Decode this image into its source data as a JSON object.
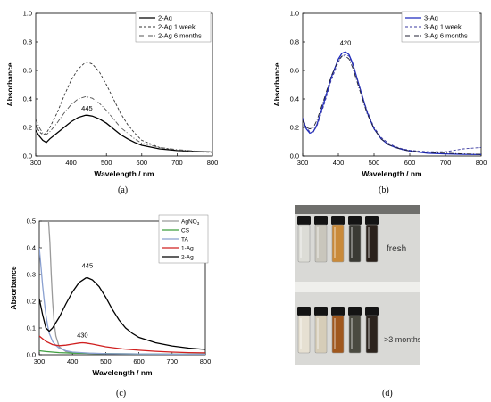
{
  "chart_data": [
    {
      "panel": "(a)",
      "type": "line",
      "xlabel": "Wavelength / nm",
      "ylabel": "Absorbance",
      "xlim": [
        300,
        800
      ],
      "ylim": [
        0,
        1.0
      ],
      "xticks": [
        "300",
        "400",
        "500",
        "600",
        "700",
        "800"
      ],
      "yticks": [
        "0.0",
        "0.2",
        "0.4",
        "0.6",
        "0.8",
        "1.0"
      ],
      "grid": false,
      "legend": "top-right",
      "annotations": [
        {
          "text": "445",
          "x": 445,
          "y": 0.3
        }
      ],
      "series": [
        {
          "name": "2-Ag",
          "style": "solid",
          "color": "#000000",
          "x": [
            300,
            310,
            320,
            330,
            340,
            360,
            380,
            400,
            420,
            440,
            445,
            460,
            480,
            500,
            520,
            540,
            560,
            580,
            600,
            650,
            700,
            750,
            800
          ],
          "y": [
            0.18,
            0.14,
            0.11,
            0.095,
            0.12,
            0.16,
            0.2,
            0.24,
            0.27,
            0.285,
            0.286,
            0.28,
            0.26,
            0.23,
            0.19,
            0.15,
            0.12,
            0.095,
            0.075,
            0.05,
            0.038,
            0.032,
            0.028
          ]
        },
        {
          "name": "2-Ag 1 week",
          "style": "dashed",
          "color": "#333333",
          "x": [
            300,
            310,
            320,
            330,
            340,
            360,
            380,
            400,
            420,
            440,
            445,
            460,
            480,
            500,
            520,
            540,
            560,
            580,
            600,
            650,
            700,
            750,
            800
          ],
          "y": [
            0.22,
            0.17,
            0.15,
            0.16,
            0.2,
            0.3,
            0.42,
            0.53,
            0.61,
            0.655,
            0.66,
            0.645,
            0.59,
            0.5,
            0.4,
            0.3,
            0.22,
            0.16,
            0.11,
            0.06,
            0.04,
            0.03,
            0.025
          ]
        },
        {
          "name": "2-Ag 6 months",
          "style": "dashdot",
          "color": "#555555",
          "x": [
            300,
            310,
            320,
            330,
            340,
            360,
            380,
            400,
            420,
            440,
            445,
            460,
            480,
            500,
            520,
            540,
            560,
            580,
            600,
            650,
            700,
            750,
            800
          ],
          "y": [
            0.26,
            0.2,
            0.16,
            0.15,
            0.17,
            0.23,
            0.3,
            0.36,
            0.4,
            0.415,
            0.415,
            0.405,
            0.37,
            0.32,
            0.26,
            0.2,
            0.16,
            0.12,
            0.09,
            0.06,
            0.045,
            0.035,
            0.03
          ]
        }
      ]
    },
    {
      "panel": "(b)",
      "type": "line",
      "xlabel": "Wavelength / nm",
      "ylabel": "Absorbance",
      "xlim": [
        300,
        800
      ],
      "ylim": [
        0,
        1.0
      ],
      "xticks": [
        "300",
        "400",
        "500",
        "600",
        "700",
        "800"
      ],
      "yticks": [
        "0.0",
        "0.2",
        "0.4",
        "0.6",
        "0.8",
        "1.0"
      ],
      "grid": false,
      "legend": "top-right",
      "annotations": [
        {
          "text": "420",
          "x": 420,
          "y": 0.76
        }
      ],
      "series": [
        {
          "name": "3-Ag",
          "style": "solid",
          "color": "#1f2bbf",
          "x": [
            300,
            310,
            320,
            330,
            340,
            360,
            380,
            400,
            410,
            420,
            430,
            440,
            460,
            480,
            500,
            520,
            540,
            560,
            580,
            600,
            650,
            700,
            750,
            800
          ],
          "y": [
            0.26,
            0.19,
            0.16,
            0.17,
            0.22,
            0.38,
            0.55,
            0.68,
            0.72,
            0.73,
            0.71,
            0.65,
            0.48,
            0.31,
            0.19,
            0.12,
            0.08,
            0.06,
            0.045,
            0.035,
            0.02,
            0.015,
            0.012,
            0.01
          ]
        },
        {
          "name": "3-Ag 1 week",
          "style": "dashed",
          "color": "#3a3aa0",
          "x": [
            300,
            310,
            320,
            330,
            340,
            360,
            380,
            400,
            410,
            420,
            430,
            440,
            460,
            480,
            500,
            520,
            540,
            560,
            580,
            600,
            650,
            700,
            750,
            800
          ],
          "y": [
            0.27,
            0.2,
            0.17,
            0.17,
            0.21,
            0.36,
            0.53,
            0.66,
            0.7,
            0.71,
            0.7,
            0.64,
            0.48,
            0.32,
            0.2,
            0.13,
            0.09,
            0.065,
            0.05,
            0.04,
            0.03,
            0.03,
            0.05,
            0.06
          ]
        },
        {
          "name": "3-Ag 6 months",
          "style": "dashdot",
          "color": "#222233",
          "x": [
            300,
            310,
            320,
            330,
            340,
            360,
            380,
            400,
            410,
            420,
            430,
            440,
            460,
            480,
            500,
            520,
            540,
            560,
            580,
            600,
            650,
            700,
            750,
            800
          ],
          "y": [
            0.25,
            0.2,
            0.19,
            0.2,
            0.25,
            0.4,
            0.56,
            0.67,
            0.7,
            0.7,
            0.68,
            0.62,
            0.46,
            0.3,
            0.19,
            0.12,
            0.08,
            0.06,
            0.045,
            0.035,
            0.025,
            0.02,
            0.015,
            0.012
          ]
        }
      ]
    },
    {
      "panel": "(c)",
      "type": "line",
      "xlabel": "Wavelength / nm",
      "ylabel": "Absorbance",
      "xlim": [
        300,
        800
      ],
      "ylim": [
        0,
        0.5
      ],
      "xticks": [
        "300",
        "400",
        "500",
        "600",
        "700",
        "800"
      ],
      "yticks": [
        "0.0",
        "0.1",
        "0.2",
        "0.3",
        "0.4",
        "0.5"
      ],
      "grid": false,
      "legend": "top-right",
      "annotations": [
        {
          "text": "445",
          "x": 445,
          "y": 0.315
        },
        {
          "text": "430",
          "x": 430,
          "y": 0.055
        }
      ],
      "series": [
        {
          "name": "AgNO3",
          "style": "solid",
          "color": "#9a9a9a",
          "x": [
            328,
            332,
            336,
            340,
            345,
            350,
            360,
            380,
            400,
            450,
            500,
            600,
            700,
            800
          ],
          "y": [
            0.5,
            0.42,
            0.3,
            0.2,
            0.12,
            0.07,
            0.03,
            0.012,
            0.008,
            0.005,
            0.004,
            0.003,
            0.002,
            0.002
          ]
        },
        {
          "name": "CS",
          "style": "solid",
          "color": "#3f9f3f",
          "x": [
            300,
            320,
            340,
            360,
            380,
            400,
            450,
            500,
            600,
            700,
            800
          ],
          "y": [
            0.015,
            0.012,
            0.01,
            0.008,
            0.007,
            0.006,
            0.005,
            0.004,
            0.003,
            0.002,
            0.002
          ]
        },
        {
          "name": "TA",
          "style": "solid",
          "color": "#8aa0d0",
          "x": [
            300,
            305,
            310,
            315,
            320,
            325,
            330,
            340,
            350,
            360,
            380,
            400,
            450,
            500,
            600,
            700,
            800
          ],
          "y": [
            0.4,
            0.33,
            0.26,
            0.2,
            0.15,
            0.11,
            0.08,
            0.05,
            0.035,
            0.025,
            0.015,
            0.01,
            0.006,
            0.004,
            0.003,
            0.002,
            0.002
          ]
        },
        {
          "name": "1-Ag",
          "style": "solid",
          "color": "#d02020",
          "x": [
            300,
            320,
            340,
            360,
            380,
            400,
            420,
            430,
            440,
            460,
            480,
            500,
            550,
            600,
            650,
            700,
            750,
            800
          ],
          "y": [
            0.07,
            0.05,
            0.038,
            0.034,
            0.036,
            0.04,
            0.044,
            0.045,
            0.044,
            0.04,
            0.035,
            0.03,
            0.022,
            0.017,
            0.013,
            0.01,
            0.008,
            0.007
          ]
        },
        {
          "name": "2-Ag",
          "style": "solid",
          "color": "#000000",
          "x": [
            300,
            310,
            320,
            330,
            340,
            360,
            380,
            400,
            420,
            440,
            445,
            460,
            480,
            500,
            520,
            540,
            560,
            580,
            600,
            650,
            700,
            750,
            800
          ],
          "y": [
            0.21,
            0.15,
            0.1,
            0.088,
            0.1,
            0.14,
            0.19,
            0.235,
            0.27,
            0.287,
            0.288,
            0.28,
            0.255,
            0.215,
            0.17,
            0.13,
            0.1,
            0.08,
            0.065,
            0.045,
            0.033,
            0.025,
            0.02
          ]
        }
      ]
    }
  ],
  "photo": {
    "panel": "(d)",
    "label_fresh": "fresh",
    "label_aged": ">3 months aged",
    "vial_colors_fresh": [
      "#dcdcd6",
      "#c9c6bc",
      "#c98a3a",
      "#3a3a34",
      "#2a211b"
    ],
    "vial_colors_aged": [
      "#e6e0d2",
      "#d6cdb8",
      "#a0581e",
      "#4a4a40",
      "#2c241e"
    ]
  }
}
